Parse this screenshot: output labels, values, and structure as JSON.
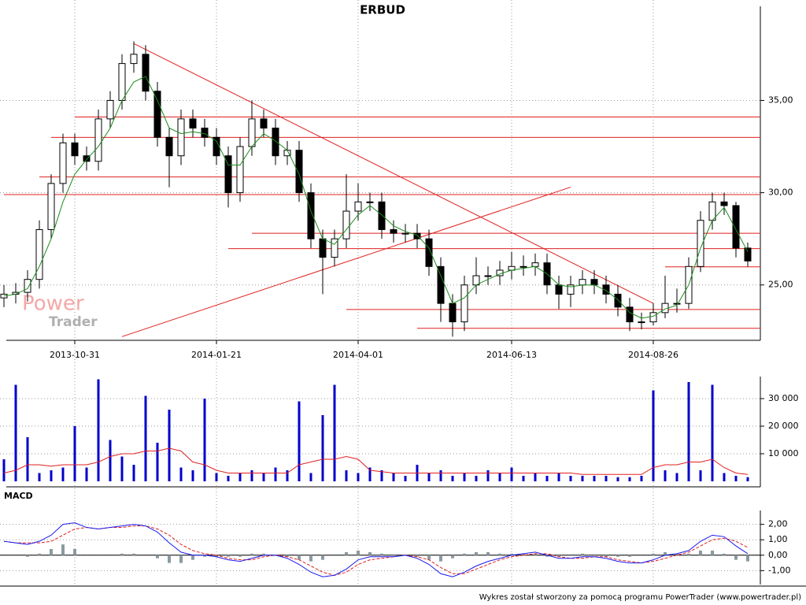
{
  "chart_data": [
    {
      "type": "candlestick",
      "title": "ERBUD",
      "watermark": [
        "Power",
        "Trader"
      ],
      "categories": [
        null,
        null,
        null,
        null,
        null,
        null,
        "2013-10-31",
        null,
        null,
        null,
        null,
        null,
        null,
        null,
        null,
        null,
        null,
        null,
        "2014-01-21",
        null,
        null,
        null,
        null,
        null,
        null,
        null,
        null,
        null,
        null,
        null,
        "2014-04-01",
        null,
        null,
        null,
        null,
        null,
        null,
        null,
        null,
        null,
        null,
        null,
        null,
        "2014-06-13",
        null,
        null,
        null,
        null,
        null,
        null,
        null,
        null,
        null,
        null,
        null,
        "2014-08-26",
        null,
        null,
        null,
        null,
        null,
        null,
        null,
        null
      ],
      "open": [
        24.3,
        24.5,
        24.6,
        25.3,
        28,
        30.5,
        32.7,
        32,
        31.7,
        34,
        35,
        37,
        37.5,
        35.5,
        33,
        32,
        34,
        33.5,
        33,
        32,
        30,
        32.5,
        34,
        33.5,
        32,
        32.3,
        30,
        27.5,
        26.5,
        27.5,
        29,
        29.5,
        29.5,
        28,
        27.8,
        27.8,
        27.5,
        26,
        24,
        23,
        25,
        25.5,
        25.5,
        25.8,
        26,
        26,
        26.2,
        25,
        24.5,
        25,
        25.3,
        25,
        24.5,
        23.8,
        23,
        23,
        23.5,
        24,
        24,
        26,
        28.5,
        29.5,
        29.3,
        27
      ],
      "high": [
        25.0,
        25.1,
        25.8,
        28.5,
        31.0,
        33.2,
        33.2,
        32.5,
        34.5,
        35.5,
        37.5,
        38.2,
        38.0,
        36.0,
        33.5,
        34.5,
        34.5,
        34.0,
        33.5,
        32.5,
        33.0,
        35.0,
        34.5,
        34.0,
        32.8,
        32.8,
        30.5,
        28.0,
        28.0,
        31.0,
        30.5,
        30.0,
        30.0,
        28.5,
        28.3,
        28.3,
        28.0,
        26.5,
        24.5,
        25.5,
        26.5,
        26.0,
        26.3,
        26.8,
        26.6,
        26.7,
        26.7,
        25.5,
        25.5,
        25.8,
        25.8,
        25.5,
        25.0,
        24.3,
        23.5,
        24.0,
        25.5,
        24.8,
        26.5,
        29.0,
        30.0,
        30.0,
        29.5,
        27.3
      ],
      "low": [
        23.8,
        24.0,
        24.1,
        24.8,
        27.5,
        30.0,
        31.5,
        31.2,
        31.2,
        33.5,
        34.5,
        36.5,
        35.0,
        32.5,
        30.3,
        31.5,
        33.0,
        32.5,
        31.5,
        29.2,
        29.5,
        32.0,
        33.0,
        31.5,
        31.5,
        29.5,
        27.0,
        24.5,
        26.0,
        27.0,
        28.5,
        29.0,
        27.5,
        27.3,
        27.3,
        27.0,
        25.5,
        23.0,
        22.2,
        22.5,
        24.5,
        25.0,
        25.0,
        25.3,
        25.5,
        25.5,
        24.5,
        23.7,
        23.8,
        24.5,
        24.5,
        24.0,
        23.3,
        22.5,
        22.6,
        22.8,
        23.2,
        23.5,
        23.7,
        25.7,
        28.0,
        28.8,
        26.5,
        26.0
      ],
      "close": [
        24.5,
        24.6,
        25.3,
        28,
        30.5,
        32.7,
        32,
        31.7,
        34,
        35,
        37,
        37.5,
        35.5,
        33,
        32,
        34,
        33.5,
        33,
        32,
        30,
        32.5,
        34,
        33.5,
        32,
        32.3,
        30,
        27.5,
        26.5,
        27.5,
        29,
        29.5,
        29.5,
        28,
        27.8,
        27.8,
        27.5,
        26,
        24,
        23,
        25,
        25.5,
        25.5,
        25.8,
        26,
        26,
        26.2,
        25,
        24.5,
        25,
        25.3,
        25,
        24.5,
        23.8,
        23,
        23,
        23.5,
        24,
        24,
        26,
        28.5,
        29.5,
        29.3,
        27,
        26.3
      ],
      "ma": {
        "color": "#1a8c1a",
        "values": [
          24.4,
          24.5,
          24.8,
          26,
          27.5,
          29.5,
          31,
          31.8,
          32.5,
          33.5,
          35,
          36,
          36.3,
          35,
          33.5,
          33.2,
          33.3,
          33.2,
          32.8,
          31.5,
          31.5,
          32.5,
          33.2,
          32.8,
          32.3,
          31,
          29,
          27.5,
          27.2,
          28,
          28.8,
          29.3,
          28.8,
          28.2,
          27.9,
          27.7,
          27,
          25.5,
          24,
          24.3,
          25,
          25.3,
          25.6,
          25.8,
          25.9,
          26,
          25.6,
          25,
          24.9,
          25,
          25,
          24.7,
          24.2,
          23.5,
          23.2,
          23.3,
          23.7,
          23.9,
          25,
          27,
          28.5,
          29.2,
          28,
          26.8
        ]
      },
      "levels": [
        {
          "value": 34.1,
          "start": 6
        },
        {
          "value": 33.0,
          "start": 4
        },
        {
          "value": 30.85,
          "start": 3
        },
        {
          "value": 29.9,
          "start": 0
        },
        {
          "value": 27.8,
          "start": 21
        },
        {
          "value": 26.97,
          "start": 19
        },
        {
          "value": 25.98,
          "start": 56
        },
        {
          "value": 23.67,
          "start": 29
        },
        {
          "value": 22.65,
          "start": 35
        }
      ],
      "trendlines": [
        {
          "from": [
            11,
            38.08
          ],
          "to": [
            55,
            24.0
          ]
        },
        {
          "from": [
            10,
            22.2
          ],
          "to": [
            48,
            30.3
          ]
        }
      ],
      "line_color": "#e02020",
      "ylim": [
        22,
        40.1
      ],
      "yticks": [
        {
          "value": 25,
          "label": "25,00"
        },
        {
          "value": 30,
          "label": "30,00"
        },
        {
          "value": 35,
          "label": "35,00"
        }
      ],
      "grid": true
    },
    {
      "type": "bar",
      "values": [
        8000,
        35000,
        16000,
        3000,
        4000,
        5000,
        20000,
        5000,
        37000,
        15000,
        9000,
        6000,
        31000,
        14000,
        26000,
        5000,
        4000,
        30000,
        3000,
        2000,
        3000,
        4000,
        3000,
        5000,
        4000,
        29000,
        3000,
        24000,
        35000,
        4000,
        3000,
        5000,
        4000,
        3000,
        2000,
        6000,
        3000,
        4000,
        2000,
        3000,
        2000,
        4000,
        3000,
        5000,
        2000,
        3000,
        2000,
        3000,
        2000,
        2000,
        2000,
        2000,
        1500,
        1500,
        2000,
        33000,
        4000,
        3000,
        36000,
        4000,
        35000,
        3000,
        2000,
        1500
      ],
      "color": "#0000cc",
      "average": {
        "color": "#e02020",
        "values": [
          3000,
          4000,
          6000,
          6000,
          5500,
          6000,
          6000,
          6000,
          7000,
          9000,
          10000,
          10000,
          11000,
          11000,
          12000,
          11000,
          7000,
          6000,
          4000,
          3000,
          3000,
          3000,
          3000,
          3000,
          3000,
          6000,
          7000,
          8000,
          8000,
          9000,
          8000,
          4000,
          3500,
          3000,
          3000,
          3000,
          3000,
          3000,
          3000,
          3000,
          3000,
          3000,
          3000,
          3000,
          3000,
          3000,
          3000,
          3000,
          3000,
          2500,
          2500,
          2500,
          2500,
          2500,
          2500,
          5000,
          6000,
          6000,
          7000,
          7000,
          8000,
          5000,
          3000,
          2500
        ]
      },
      "ylim": [
        -2000,
        38000
      ],
      "yticks": [
        {
          "value": 10000,
          "label": "10 000"
        },
        {
          "value": 20000,
          "label": "20 000"
        },
        {
          "value": 30000,
          "label": "30 000"
        }
      ],
      "grid": true
    },
    {
      "type": "macd",
      "title": "MACD",
      "macd": {
        "color": "#1a1aee",
        "values": [
          0.9,
          0.8,
          0.7,
          0.9,
          1.3,
          2.0,
          2.1,
          1.8,
          1.7,
          1.8,
          1.9,
          2.0,
          1.9,
          1.5,
          0.8,
          0.2,
          0.0,
          0.0,
          -0.1,
          -0.3,
          -0.4,
          -0.2,
          0.0,
          0.0,
          -0.2,
          -0.6,
          -1.1,
          -1.4,
          -1.3,
          -0.9,
          -0.3,
          -0.1,
          -0.1,
          -0.1,
          0.0,
          -0.2,
          -0.6,
          -1.2,
          -1.4,
          -1.1,
          -0.7,
          -0.4,
          -0.2,
          0.0,
          0.1,
          0.2,
          0.0,
          -0.2,
          -0.2,
          -0.1,
          -0.1,
          -0.2,
          -0.4,
          -0.5,
          -0.5,
          -0.3,
          0.0,
          0.1,
          0.3,
          0.9,
          1.3,
          1.2,
          0.6,
          0.1
        ]
      },
      "signal": {
        "color": "#e02020",
        "values": [
          0.9,
          0.8,
          0.8,
          0.8,
          0.9,
          1.3,
          1.7,
          1.8,
          1.7,
          1.8,
          1.8,
          1.9,
          1.9,
          1.7,
          1.3,
          0.7,
          0.3,
          0.1,
          0.0,
          -0.2,
          -0.3,
          -0.3,
          -0.1,
          0.0,
          -0.1,
          -0.3,
          -0.7,
          -1.1,
          -1.3,
          -1.1,
          -0.6,
          -0.3,
          -0.2,
          -0.1,
          0.0,
          -0.1,
          -0.3,
          -0.8,
          -1.2,
          -1.2,
          -0.9,
          -0.6,
          -0.3,
          -0.1,
          0.0,
          0.1,
          0.1,
          -0.1,
          -0.2,
          -0.2,
          -0.1,
          -0.1,
          -0.3,
          -0.4,
          -0.5,
          -0.4,
          -0.2,
          0.0,
          0.2,
          0.6,
          1.0,
          1.1,
          0.9,
          0.5
        ]
      },
      "histogram": {
        "color": "#8a9aa0",
        "values": [
          0,
          0,
          -0.1,
          0.1,
          0.4,
          0.7,
          0.4,
          0,
          0,
          0,
          0.1,
          0.1,
          0,
          -0.2,
          -0.5,
          -0.5,
          -0.3,
          -0.1,
          -0.1,
          -0.1,
          -0.1,
          0.1,
          0.1,
          0,
          -0.1,
          -0.3,
          -0.4,
          -0.3,
          0,
          0.2,
          0.3,
          0.2,
          0.1,
          0,
          0,
          -0.1,
          -0.3,
          -0.4,
          -0.2,
          0.1,
          0.2,
          0.2,
          0.1,
          0.1,
          0.1,
          0.1,
          -0.1,
          -0.1,
          0,
          0.1,
          0,
          -0.1,
          -0.1,
          -0.1,
          0,
          0.1,
          0.2,
          0.1,
          0.1,
          0.3,
          0.3,
          0.1,
          -0.3,
          -0.4
        ]
      },
      "ylim": [
        -1.9,
        2.9
      ],
      "yticks": [
        {
          "value": -1,
          "label": "-1,00"
        },
        {
          "value": 0,
          "label": "0,00"
        },
        {
          "value": 1,
          "label": "1,00"
        },
        {
          "value": 2,
          "label": "2,00"
        }
      ],
      "grid": true
    }
  ],
  "footer": "Wykres został stworzony za pomocą programu PowerTrader (www.powertrader.pl)"
}
